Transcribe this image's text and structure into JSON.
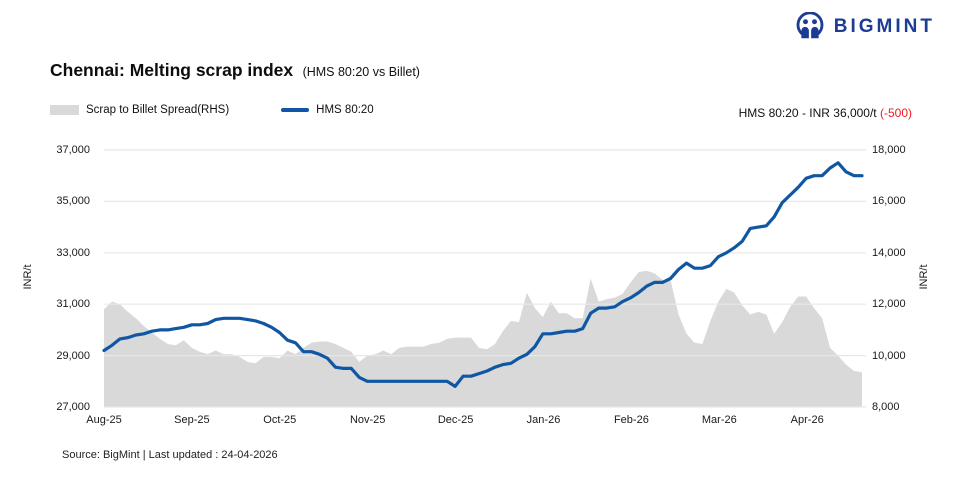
{
  "brand": {
    "name": "BIGMINT",
    "logo_color": "#1d3c94"
  },
  "legend": {
    "spread": "Scrap to Billet Spread(RHS)",
    "hms": "HMS 80:20"
  },
  "annotation": {
    "text": "HMS 80:20 - INR 36,000/t ",
    "change": "(-500)",
    "change_color": "#ee1c25"
  },
  "source": "Source: BigMint | Last updated : 24-04-2026",
  "colors": {
    "grid": "#e8e8e8",
    "axis_text": "#1a1a1a",
    "background": "#ffffff"
  },
  "chart_data": {
    "type": "line",
    "title": "Chennai: Melting scrap index",
    "subtitle": "(HMS 80:20 vs Billet)",
    "grid": true,
    "legend_position": "top-left",
    "categories": [
      "Aug-25",
      "Sep-25",
      "Oct-25",
      "Nov-25",
      "Dec-25",
      "Jan-26",
      "Feb-26",
      "Mar-26",
      "Apr-26"
    ],
    "left_axis": {
      "label": "INR/t",
      "min": 27000,
      "max": 37000,
      "ticks": [
        "37,000",
        "35,000",
        "33,000",
        "31,000",
        "29,000",
        "27,000"
      ]
    },
    "right_axis": {
      "label": "INR/t",
      "min": 8000,
      "max": 18000,
      "ticks": [
        "18,000",
        "16,000",
        "14,000",
        "12,000",
        "10,000",
        "8,000"
      ]
    },
    "series": [
      {
        "name": "Scrap to Billet Spread(RHS)",
        "type": "area",
        "axis": "right",
        "color": "#d9d9d9",
        "values": [
          11800,
          12100,
          12000,
          11700,
          11450,
          11150,
          10900,
          10650,
          10450,
          10400,
          10600,
          10300,
          10150,
          10050,
          10200,
          10050,
          10050,
          9950,
          9750,
          9700,
          9950,
          9950,
          9900,
          10200,
          10050,
          10300,
          10500,
          10550,
          10550,
          10450,
          10300,
          10150,
          9750,
          10000,
          10050,
          10200,
          10050,
          10300,
          10350,
          10350,
          10350,
          10450,
          10500,
          10650,
          10700,
          10700,
          10700,
          10300,
          10250,
          10450,
          10950,
          11350,
          11300,
          12450,
          11850,
          11500,
          12100,
          11650,
          11650,
          11450,
          11450,
          13000,
          12100,
          12200,
          12250,
          12400,
          12850,
          13250,
          13300,
          13200,
          12950,
          12950,
          11600,
          10850,
          10500,
          10450,
          11350,
          12100,
          12600,
          12450,
          11950,
          11600,
          11700,
          11600,
          10850,
          11300,
          11900,
          12300,
          12300,
          11850,
          11450,
          10300,
          10000,
          9650,
          9400,
          9350
        ]
      },
      {
        "name": "HMS 80:20",
        "type": "line",
        "axis": "left",
        "color": "#0f57a4",
        "values": [
          29200,
          29400,
          29650,
          29700,
          29800,
          29850,
          29950,
          30000,
          30000,
          30050,
          30100,
          30200,
          30200,
          30250,
          30400,
          30450,
          30450,
          30450,
          30400,
          30350,
          30250,
          30100,
          29900,
          29600,
          29500,
          29150,
          29150,
          29050,
          28900,
          28550,
          28500,
          28500,
          28150,
          28000,
          28000,
          28000,
          28000,
          28000,
          28000,
          28000,
          28000,
          28000,
          28000,
          28000,
          27800,
          28200,
          28200,
          28300,
          28400,
          28550,
          28650,
          28700,
          28900,
          29050,
          29350,
          29850,
          29850,
          29900,
          29950,
          29950,
          30050,
          30650,
          30850,
          30850,
          30900,
          31100,
          31250,
          31450,
          31700,
          31850,
          31850,
          32000,
          32350,
          32600,
          32400,
          32400,
          32500,
          32850,
          33000,
          33200,
          33450,
          33950,
          34000,
          34050,
          34400,
          34950,
          35250,
          35550,
          35900,
          36000,
          36000,
          36300,
          36500,
          36150,
          36000,
          36000
        ]
      }
    ]
  }
}
